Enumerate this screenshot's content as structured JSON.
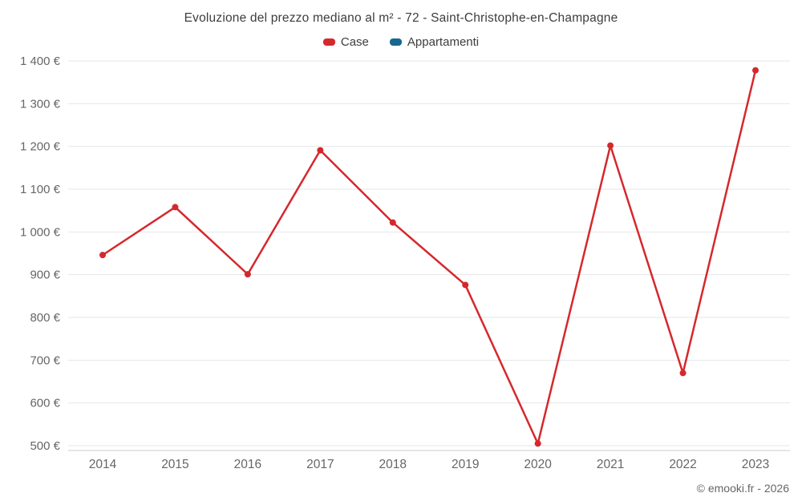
{
  "header": {
    "title": "Evoluzione del prezzo mediano al m² - 72 - Saint-Christophe-en-Champagne"
  },
  "legend": [
    {
      "label": "Case",
      "color": "#d5282d"
    },
    {
      "label": "Appartamenti",
      "color": "#15688f"
    }
  ],
  "footer": {
    "credit": "© emooki.fr - 2026"
  },
  "chart_data": {
    "type": "line",
    "title": "Evoluzione del prezzo mediano al m² - 72 - Saint-Christophe-en-Champagne",
    "categories": [
      "2014",
      "2015",
      "2016",
      "2017",
      "2018",
      "2019",
      "2020",
      "2021",
      "2022",
      "2023"
    ],
    "series": [
      {
        "name": "Case",
        "color": "#d5282d",
        "values": [
          946,
          1058,
          901,
          1191,
          1022,
          876,
          505,
          1202,
          670,
          1378
        ]
      },
      {
        "name": "Appartamenti",
        "color": "#15688f",
        "values": []
      }
    ],
    "xlabel": "",
    "ylabel": "",
    "ylim": [
      500,
      1400
    ],
    "y_tick_step": 100,
    "y_tick_labels": [
      "500 €",
      "600 €",
      "700 €",
      "800 €",
      "900 €",
      "1 000 €",
      "1 100 €",
      "1 200 €",
      "1 300 €",
      "1 400 €"
    ],
    "grid": true,
    "legend_position": "top",
    "grid_color": "#e6e6e6",
    "axis_line_color": "#cccccc",
    "tick_label_color": "#666666"
  }
}
